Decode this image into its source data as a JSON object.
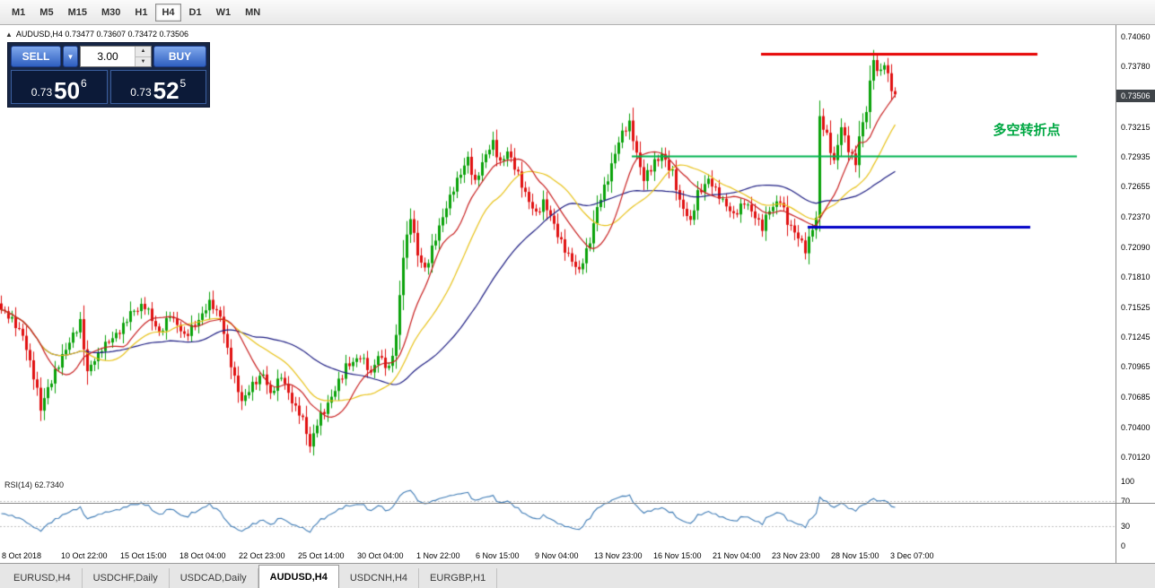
{
  "toolbar": {
    "timeframes": [
      {
        "label": "M1",
        "active": false
      },
      {
        "label": "M5",
        "active": false
      },
      {
        "label": "M15",
        "active": false
      },
      {
        "label": "M30",
        "active": false
      },
      {
        "label": "H1",
        "active": false
      },
      {
        "label": "H4",
        "active": true
      },
      {
        "label": "D1",
        "active": false
      },
      {
        "label": "W1",
        "active": false
      },
      {
        "label": "MN",
        "active": false
      }
    ]
  },
  "chart_header": {
    "collapse_glyph": "▲",
    "text": "AUDUSD,H4 0.73477 0.73607 0.73472 0.73506"
  },
  "trade_panel": {
    "sell_label": "SELL",
    "buy_label": "BUY",
    "dropdown_glyph": "▼",
    "lot_value": "3.00",
    "spin_up_glyph": "▲",
    "spin_down_glyph": "▼",
    "sell_price": {
      "prefix": "0.73",
      "big": "50",
      "sup": "6"
    },
    "buy_price": {
      "prefix": "0.73",
      "big": "52",
      "sup": "5"
    }
  },
  "price_axis": {
    "current_price_label": "0.73506"
  },
  "chart_data": {
    "type": "candlestick",
    "title": "AUDUSD,H4",
    "symbol": "AUDUSD",
    "timeframe": "H4",
    "last_bar_ohlc": {
      "open": 0.73477,
      "high": 0.73607,
      "low": 0.73472,
      "close": 0.73506
    },
    "current_price": 0.73506,
    "price_axis_ticks": [
      "0.74060",
      "0.73780",
      "0.73215",
      "0.72935",
      "0.72655",
      "0.72370",
      "0.72090",
      "0.71810",
      "0.71525",
      "0.71245",
      "0.70965",
      "0.70685",
      "0.70400",
      "0.70120"
    ],
    "time_axis_labels": [
      "8 Oct 2018",
      "10 Oct 22:00",
      "15 Oct 15:00",
      "18 Oct 04:00",
      "22 Oct 23:00",
      "25 Oct 14:00",
      "30 Oct 04:00",
      "1 Nov 22:00",
      "6 Nov 15:00",
      "9 Nov 04:00",
      "13 Nov 23:00",
      "16 Nov 15:00",
      "21 Nov 04:00",
      "23 Nov 23:00",
      "28 Nov 15:00",
      "3 Dec 07:00"
    ],
    "bar_count": 250,
    "close_path_anchors": [
      [
        0,
        0.715
      ],
      [
        3,
        0.714
      ],
      [
        6,
        0.7126
      ],
      [
        9,
        0.7088
      ],
      [
        11,
        0.7058
      ],
      [
        13,
        0.7076
      ],
      [
        16,
        0.71
      ],
      [
        19,
        0.712
      ],
      [
        22,
        0.7138
      ],
      [
        24,
        0.7092
      ],
      [
        26,
        0.7104
      ],
      [
        29,
        0.7118
      ],
      [
        33,
        0.713
      ],
      [
        36,
        0.7147
      ],
      [
        40,
        0.7154
      ],
      [
        44,
        0.7128
      ],
      [
        47,
        0.7146
      ],
      [
        51,
        0.7126
      ],
      [
        55,
        0.714
      ],
      [
        58,
        0.7157
      ],
      [
        61,
        0.7144
      ],
      [
        64,
        0.7098
      ],
      [
        67,
        0.7064
      ],
      [
        70,
        0.708
      ],
      [
        73,
        0.709
      ],
      [
        75,
        0.707
      ],
      [
        78,
        0.7088
      ],
      [
        81,
        0.7064
      ],
      [
        84,
        0.7048
      ],
      [
        86,
        0.7022
      ],
      [
        88,
        0.7044
      ],
      [
        91,
        0.7062
      ],
      [
        96,
        0.7096
      ],
      [
        100,
        0.7106
      ],
      [
        103,
        0.709
      ],
      [
        105,
        0.7108
      ],
      [
        108,
        0.7094
      ],
      [
        110,
        0.7126
      ],
      [
        112,
        0.72
      ],
      [
        114,
        0.7238
      ],
      [
        116,
        0.7202
      ],
      [
        118,
        0.7188
      ],
      [
        121,
        0.7218
      ],
      [
        124,
        0.7246
      ],
      [
        127,
        0.7272
      ],
      [
        130,
        0.7292
      ],
      [
        132,
        0.7268
      ],
      [
        135,
        0.7296
      ],
      [
        137,
        0.7306
      ],
      [
        139,
        0.7288
      ],
      [
        141,
        0.7298
      ],
      [
        144,
        0.7278
      ],
      [
        146,
        0.7258
      ],
      [
        149,
        0.724
      ],
      [
        151,
        0.7252
      ],
      [
        154,
        0.723
      ],
      [
        156,
        0.7212
      ],
      [
        159,
        0.7196
      ],
      [
        161,
        0.7186
      ],
      [
        164,
        0.7214
      ],
      [
        166,
        0.7246
      ],
      [
        169,
        0.7274
      ],
      [
        171,
        0.7298
      ],
      [
        173,
        0.7316
      ],
      [
        175,
        0.7324
      ],
      [
        177,
        0.7296
      ],
      [
        179,
        0.7272
      ],
      [
        182,
        0.7288
      ],
      [
        184,
        0.7296
      ],
      [
        187,
        0.7278
      ],
      [
        189,
        0.7252
      ],
      [
        192,
        0.7232
      ],
      [
        194,
        0.7258
      ],
      [
        197,
        0.7272
      ],
      [
        199,
        0.7262
      ],
      [
        202,
        0.7248
      ],
      [
        204,
        0.7238
      ],
      [
        207,
        0.7252
      ],
      [
        209,
        0.7242
      ],
      [
        212,
        0.7228
      ],
      [
        214,
        0.7244
      ],
      [
        217,
        0.7252
      ],
      [
        219,
        0.7232
      ],
      [
        222,
        0.7218
      ],
      [
        224,
        0.7206
      ],
      [
        226,
        0.7226
      ],
      [
        227,
        0.7236
      ],
      [
        228,
        0.733
      ],
      [
        230,
        0.7312
      ],
      [
        232,
        0.7288
      ],
      [
        234,
        0.7322
      ],
      [
        236,
        0.73
      ],
      [
        238,
        0.7288
      ],
      [
        239,
        0.7312
      ],
      [
        241,
        0.7338
      ],
      [
        242,
        0.7362
      ],
      [
        243,
        0.7386
      ],
      [
        244,
        0.7372
      ],
      [
        246,
        0.738
      ],
      [
        248,
        0.7358
      ],
      [
        249,
        0.7352
      ]
    ],
    "colors": {
      "up": "#0aa20a",
      "down": "#e01010",
      "ma_fast": "#c81e1e",
      "ma_mid": "#e8c217",
      "ma_slow": "#1c1c82",
      "background": "#ffffff"
    },
    "levels": [
      {
        "name": "resistance-line",
        "color": "#e60000",
        "price": 0.739,
        "from_bar": 212,
        "to_bar": 289,
        "width": 3
      },
      {
        "name": "pivot-line",
        "color": "#00b450",
        "price": 0.7294,
        "from_bar": 176,
        "to_bar": 300,
        "width": 2
      },
      {
        "name": "support-line",
        "color": "#0000c8",
        "price": 0.7228,
        "from_bar": 225,
        "to_bar": 287,
        "width": 3
      }
    ],
    "annotation": {
      "text": "多空转折点",
      "color": "#00a843",
      "bar": 286,
      "price": 0.7312
    },
    "moving_averages": [
      {
        "period": 12,
        "color_key": "ma_fast"
      },
      {
        "period": 24,
        "color_key": "ma_mid"
      },
      {
        "period": 48,
        "color_key": "ma_slow"
      }
    ],
    "rsi": {
      "label": "RSI(14) 62.7340",
      "period": 14,
      "value": 62.734,
      "color": "#3f7cb6",
      "levels": [
        70,
        30
      ],
      "axis_labels": [
        "100",
        "70",
        "30",
        "0"
      ],
      "range": [
        0,
        100
      ]
    }
  },
  "bottom_tabs": [
    {
      "label": "EURUSD,H4",
      "active": false
    },
    {
      "label": "USDCHF,Daily",
      "active": false
    },
    {
      "label": "USDCAD,Daily",
      "active": false
    },
    {
      "label": "AUDUSD,H4",
      "active": true
    },
    {
      "label": "USDCNH,H4",
      "active": false
    },
    {
      "label": "EURGBP,H1",
      "active": false
    }
  ]
}
